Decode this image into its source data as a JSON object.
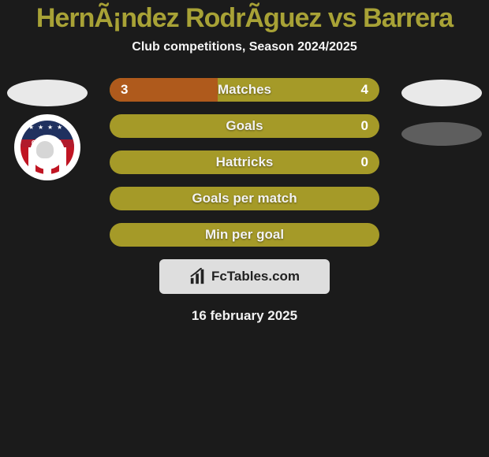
{
  "title": {
    "text": "HernÃ¡ndez RodrÃ­guez vs Barrera",
    "color": "#a8a236",
    "fontsize": 34
  },
  "subtitle": {
    "text": "Club competitions, Season 2024/2025",
    "color": "#f5f5f5",
    "fontsize": 16
  },
  "bg_color": "#1b1b1b",
  "left_side": {
    "oval1": {
      "w": 102,
      "h": 34,
      "color": "#e9e9e9",
      "mt": 2
    },
    "club_badge": {
      "label": "OLIMPIA",
      "top_color": "#20315f",
      "band_color": "#b11a2b",
      "stripes": [
        "#c01523",
        "#ffffff",
        "#c01523",
        "#ffffff",
        "#c01523",
        "#ffffff",
        "#c01523"
      ]
    }
  },
  "right_side": {
    "oval1": {
      "w": 102,
      "h": 34,
      "color": "#e9e9e9",
      "mt": 2
    },
    "oval2": {
      "w": 102,
      "h": 30,
      "color": "#5e5e5e",
      "mt": 20
    }
  },
  "bars": {
    "track_color": "#a59a28",
    "label_color": "#f3f3f3",
    "label_fontsize": 17,
    "value_color": "#ffffff",
    "value_fontsize": 17,
    "highlight_fill": "#af5a1c",
    "rows": [
      {
        "key": "matches",
        "label": "Matches",
        "left": "3",
        "right": "4",
        "left_pct": 40
      },
      {
        "key": "goals",
        "label": "Goals",
        "left": "",
        "right": "0",
        "left_pct": 0
      },
      {
        "key": "hattricks",
        "label": "Hattricks",
        "left": "",
        "right": "0",
        "left_pct": 0
      },
      {
        "key": "gpm",
        "label": "Goals per match",
        "left": "",
        "right": "",
        "left_pct": 0
      },
      {
        "key": "mpg",
        "label": "Min per goal",
        "left": "",
        "right": "",
        "left_pct": 0
      }
    ]
  },
  "logo": {
    "box_bg": "#dedede",
    "text": "FcTables.com",
    "text_color": "#222222",
    "fontsize": 17,
    "icon_color": "#222222"
  },
  "date": {
    "text": "16 february 2025",
    "color": "#f2f2f2",
    "fontsize": 17
  }
}
